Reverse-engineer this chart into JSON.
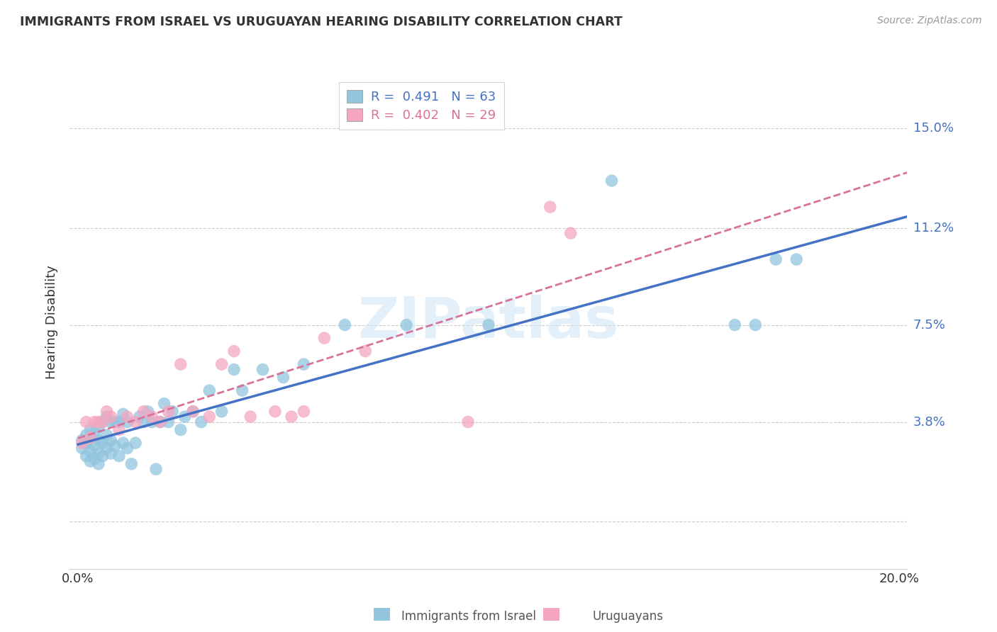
{
  "title": "IMMIGRANTS FROM ISRAEL VS URUGUAYAN HEARING DISABILITY CORRELATION CHART",
  "source": "Source: ZipAtlas.com",
  "ylabel": "Hearing Disability",
  "color_blue": "#92c5de",
  "color_pink": "#f4a6c0",
  "line_color_blue": "#4472c4",
  "line_color_pink": "#d9729a",
  "watermark_text": "ZIPatlas",
  "legend_r1": "R =  0.491",
  "legend_n1": "N = 63",
  "legend_r2": "R =  0.402",
  "legend_n2": "N = 29",
  "blue_x": [
    0.001,
    0.001,
    0.002,
    0.002,
    0.002,
    0.003,
    0.003,
    0.003,
    0.003,
    0.004,
    0.004,
    0.004,
    0.005,
    0.005,
    0.005,
    0.005,
    0.006,
    0.006,
    0.006,
    0.007,
    0.007,
    0.007,
    0.008,
    0.008,
    0.008,
    0.009,
    0.009,
    0.01,
    0.01,
    0.011,
    0.011,
    0.012,
    0.012,
    0.013,
    0.014,
    0.015,
    0.016,
    0.017,
    0.018,
    0.019,
    0.02,
    0.021,
    0.022,
    0.023,
    0.025,
    0.026,
    0.028,
    0.03,
    0.032,
    0.035,
    0.038,
    0.04,
    0.045,
    0.05,
    0.055,
    0.065,
    0.08,
    0.1,
    0.13,
    0.16,
    0.165,
    0.17,
    0.175
  ],
  "blue_y": [
    0.028,
    0.031,
    0.025,
    0.03,
    0.033,
    0.023,
    0.027,
    0.032,
    0.035,
    0.024,
    0.029,
    0.034,
    0.022,
    0.026,
    0.031,
    0.036,
    0.025,
    0.03,
    0.038,
    0.028,
    0.033,
    0.04,
    0.026,
    0.031,
    0.038,
    0.029,
    0.038,
    0.025,
    0.038,
    0.03,
    0.041,
    0.028,
    0.038,
    0.022,
    0.03,
    0.04,
    0.038,
    0.042,
    0.038,
    0.02,
    0.038,
    0.045,
    0.038,
    0.042,
    0.035,
    0.04,
    0.042,
    0.038,
    0.05,
    0.042,
    0.058,
    0.05,
    0.058,
    0.055,
    0.06,
    0.075,
    0.075,
    0.075,
    0.13,
    0.075,
    0.075,
    0.1,
    0.1
  ],
  "pink_x": [
    0.001,
    0.002,
    0.003,
    0.004,
    0.005,
    0.006,
    0.007,
    0.008,
    0.01,
    0.012,
    0.014,
    0.016,
    0.018,
    0.02,
    0.022,
    0.025,
    0.028,
    0.032,
    0.035,
    0.038,
    0.042,
    0.048,
    0.052,
    0.055,
    0.06,
    0.07,
    0.095,
    0.115,
    0.12
  ],
  "pink_y": [
    0.03,
    0.038,
    0.032,
    0.038,
    0.038,
    0.038,
    0.042,
    0.04,
    0.035,
    0.04,
    0.038,
    0.042,
    0.04,
    0.038,
    0.042,
    0.06,
    0.042,
    0.04,
    0.06,
    0.065,
    0.04,
    0.042,
    0.04,
    0.042,
    0.07,
    0.065,
    0.038,
    0.12,
    0.11
  ],
  "xlim": [
    -0.002,
    0.202
  ],
  "ylim": [
    -0.018,
    0.17
  ],
  "ytick_vals": [
    0.0,
    0.038,
    0.075,
    0.112,
    0.15
  ],
  "ytick_labels": [
    "",
    "3.8%",
    "7.5%",
    "11.2%",
    "15.0%"
  ],
  "xtick_vals": [
    0.0,
    0.05,
    0.1,
    0.15,
    0.2
  ],
  "xtick_show": [
    "0.0%",
    "",
    "",
    "",
    "20.0%"
  ]
}
